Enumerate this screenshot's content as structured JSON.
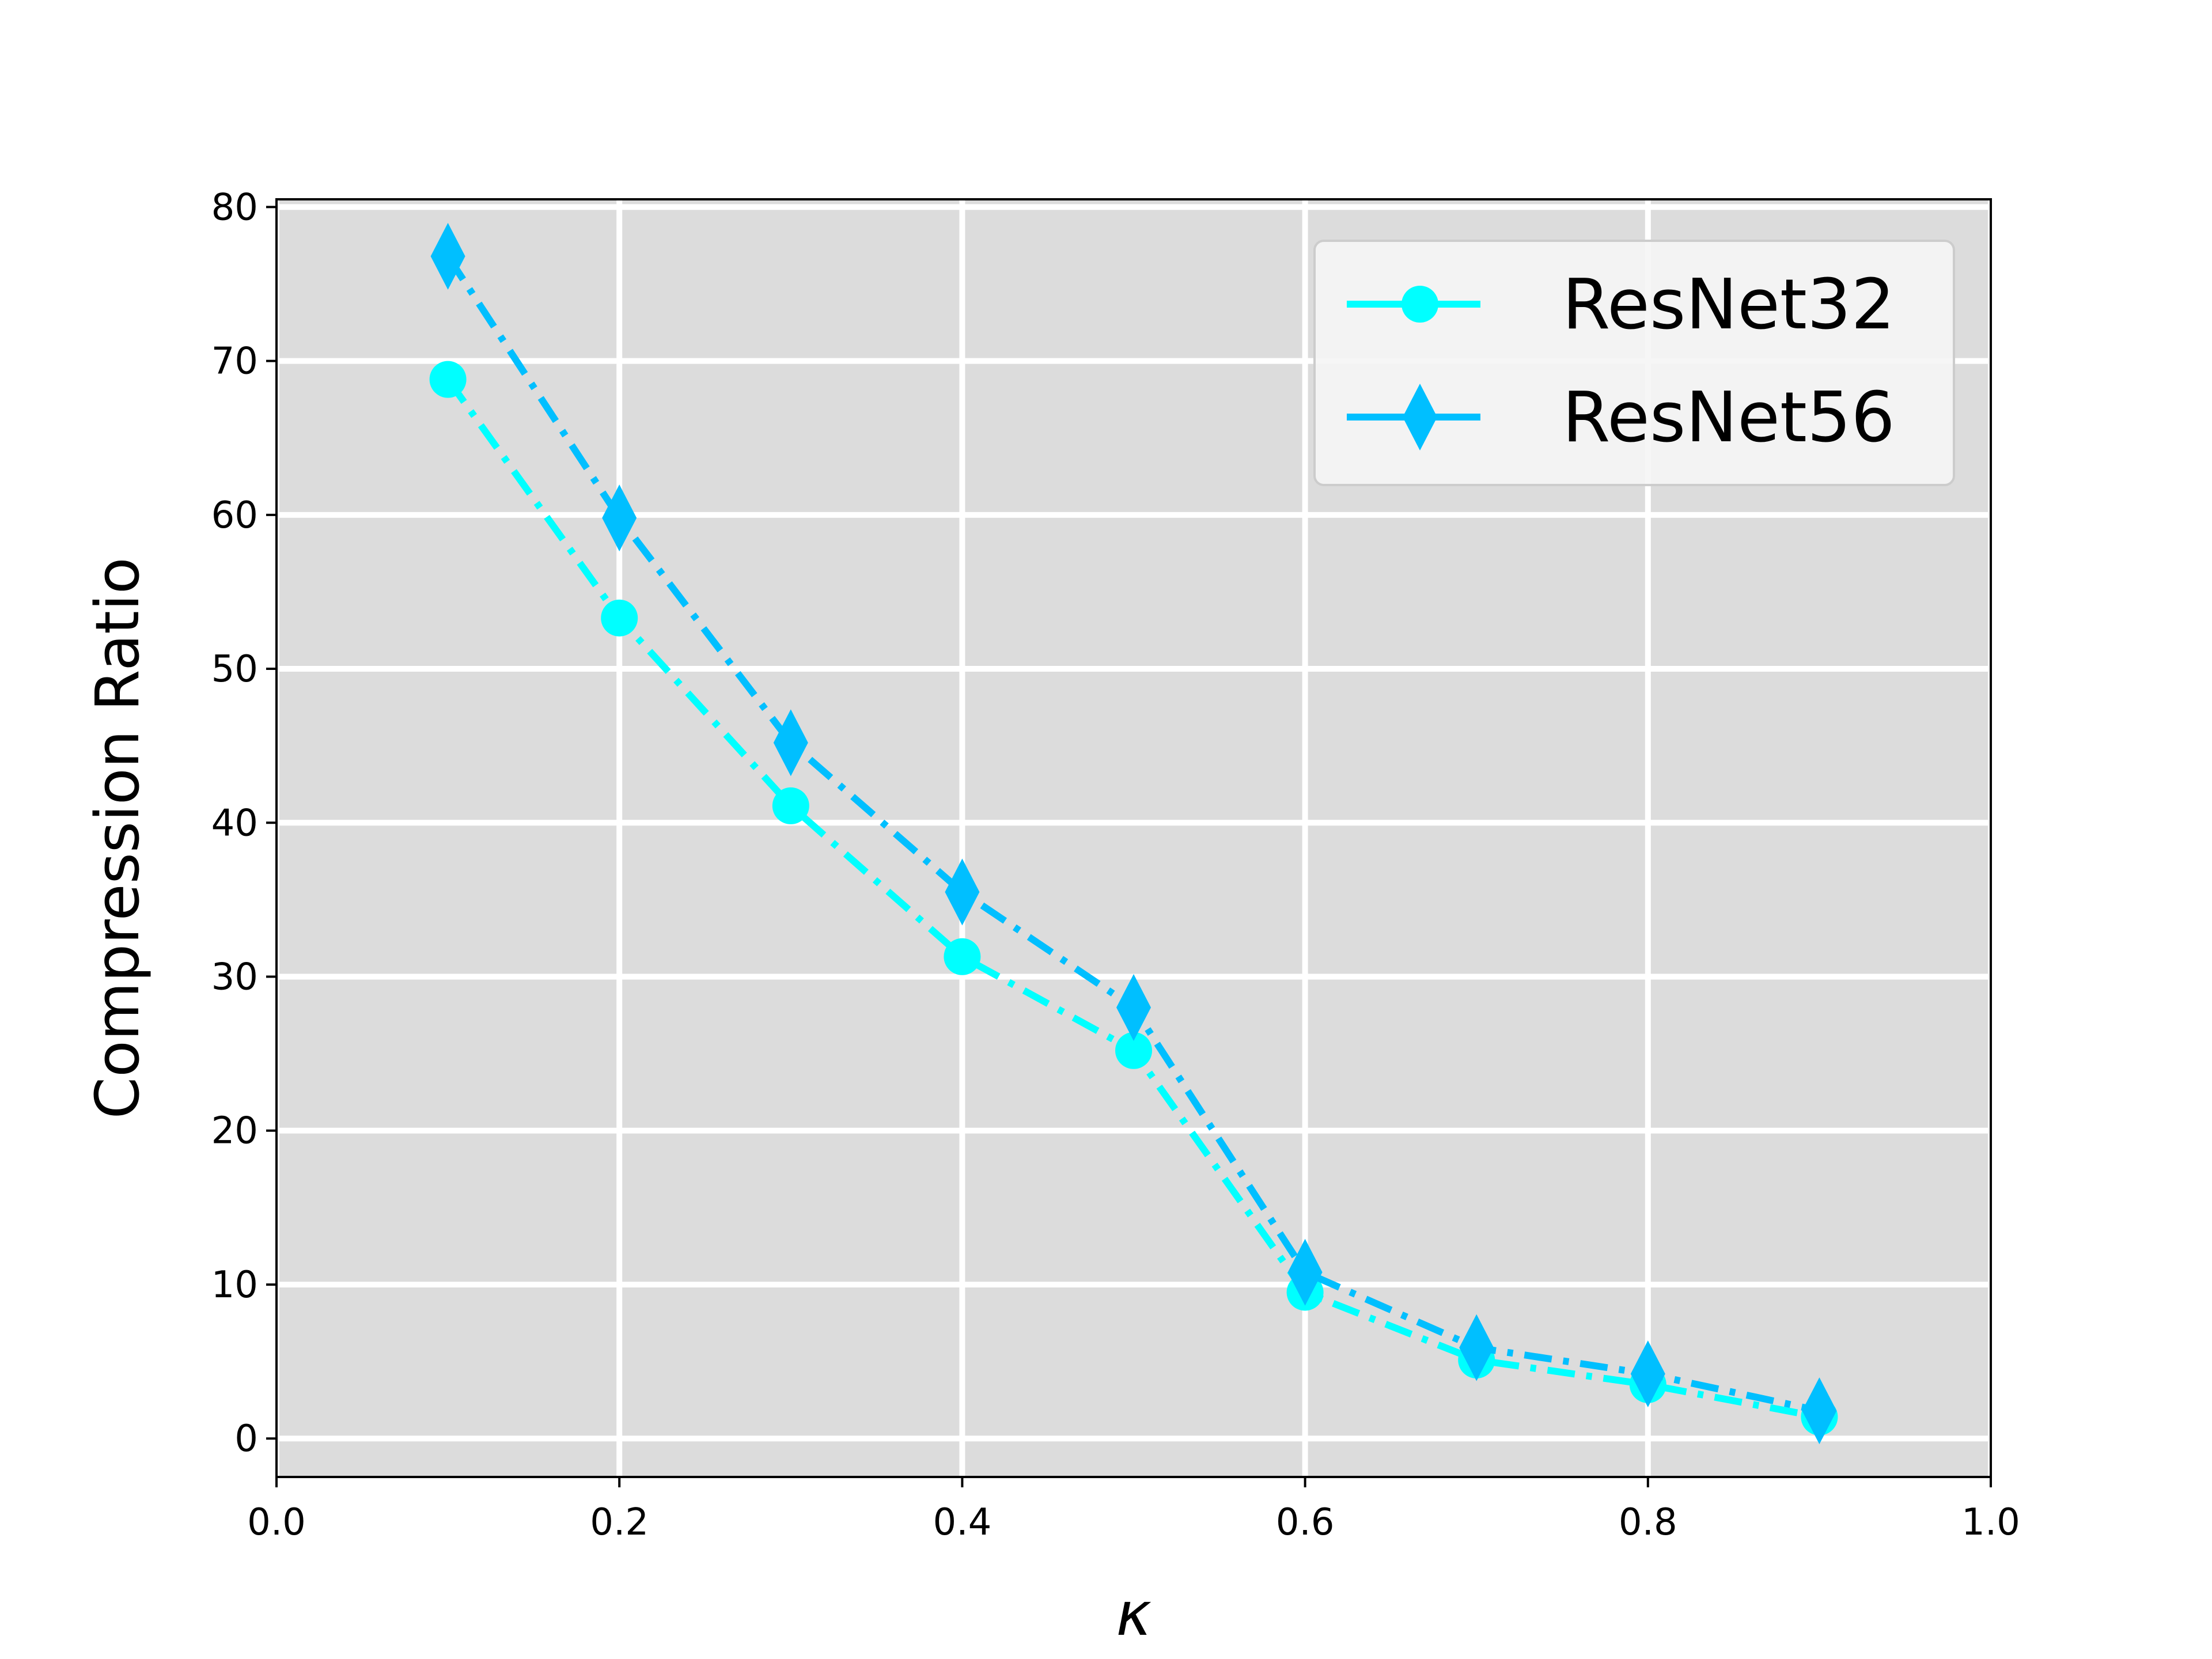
{
  "chart_data": {
    "type": "line",
    "xlabel": "κ",
    "ylabel": "Compression Ratio",
    "xlim": [
      0.0,
      1.0
    ],
    "ylim": [
      -2.5,
      80.5
    ],
    "x_ticks": [
      "0.0",
      "0.2",
      "0.4",
      "0.6",
      "0.8",
      "1.0"
    ],
    "y_ticks": [
      "0",
      "10",
      "20",
      "30",
      "40",
      "50",
      "60",
      "70",
      "80"
    ],
    "grid": true,
    "legend_position": "top-right",
    "x": [
      0.1,
      0.2,
      0.3,
      0.4,
      0.5,
      0.6,
      0.7,
      0.8,
      0.9
    ],
    "series": [
      {
        "name": "ResNet32",
        "values": [
          68.8,
          53.3,
          41.1,
          31.3,
          25.2,
          9.5,
          5.1,
          3.5,
          1.4
        ],
        "color": "#00ffff",
        "marker": "circle",
        "linestyle": "dash-dot"
      },
      {
        "name": "ResNet56",
        "values": [
          76.8,
          59.8,
          45.2,
          35.5,
          28.0,
          10.8,
          5.9,
          4.2,
          1.8
        ],
        "color": "#00bfff",
        "marker": "diamond",
        "linestyle": "dash-dot"
      }
    ],
    "colors": {
      "plot_background": "#dcdcdc",
      "grid": "#ffffff"
    }
  }
}
